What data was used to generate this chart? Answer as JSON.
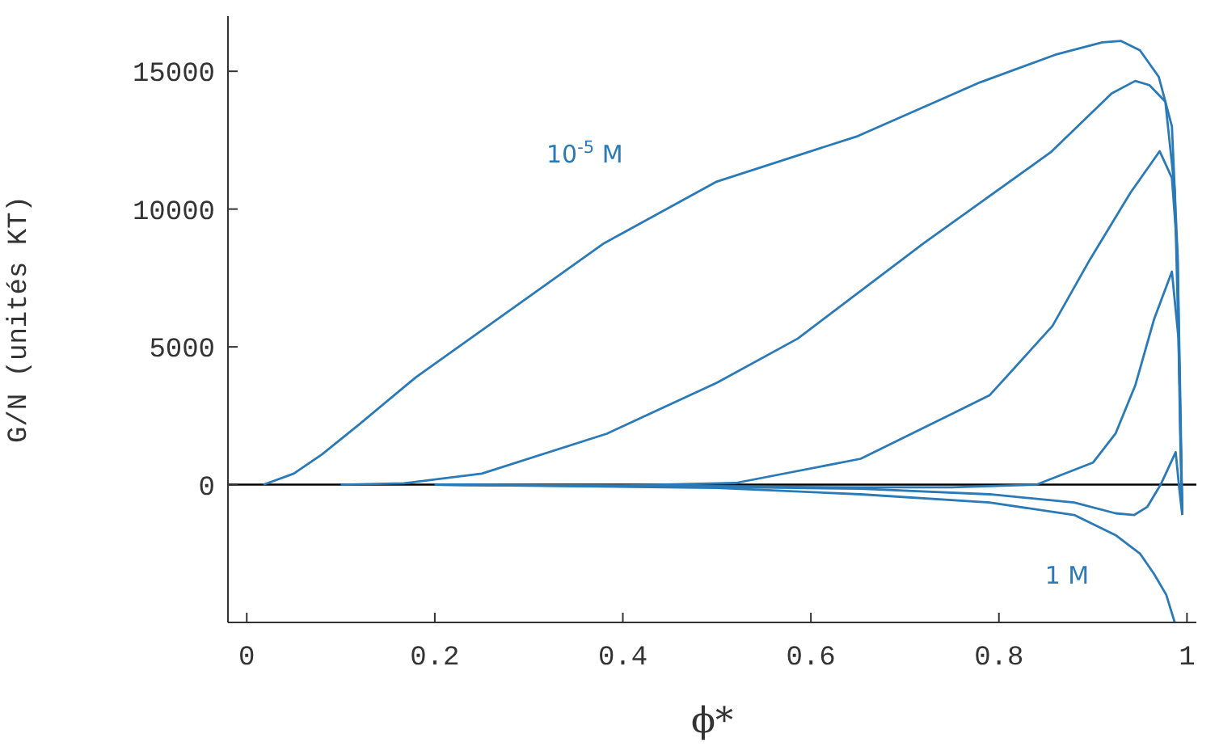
{
  "chart_data": {
    "type": "line",
    "xlabel": "ϕ*",
    "ylabel": "G/N (unités KT)",
    "xlim": [
      -0.02,
      1.01
    ],
    "ylim": [
      -5000,
      17000
    ],
    "xticks": [
      0,
      0.2,
      0.4,
      0.6,
      0.8,
      1
    ],
    "yticks": [
      0,
      5000,
      10000,
      15000
    ],
    "grid": false,
    "legend": false,
    "marker": "none",
    "line_style": "solid",
    "ref_lines": [
      {
        "axis": "y",
        "value": 0,
        "color": "#000000"
      }
    ],
    "series": [
      {
        "name": "10$^{-5}$ M",
        "color": "#2a7ab8",
        "x": [
          0.018,
          0.05,
          0.08,
          0.12,
          0.18,
          0.25,
          0.38,
          0.5,
          0.65,
          0.78,
          0.86,
          0.91,
          0.93,
          0.95,
          0.97,
          0.984,
          0.99,
          0.993,
          0.995
        ],
        "values": [
          0,
          400,
          1100,
          2200,
          3900,
          5600,
          8760,
          11000,
          12650,
          14600,
          15600,
          16050,
          16100,
          15760,
          14800,
          13000,
          8350,
          2000,
          -1100
        ]
      },
      {
        "color": "#2a7ab8",
        "x": [
          0.1,
          0.167,
          0.25,
          0.383,
          0.5,
          0.586,
          0.72,
          0.855,
          0.92,
          0.945,
          0.96,
          0.977,
          0.987,
          0.992,
          0.995
        ],
        "values": [
          0,
          50,
          400,
          1850,
          3700,
          5300,
          8760,
          12060,
          14200,
          14650,
          14500,
          13900,
          10680,
          4000,
          -1100
        ]
      },
      {
        "color": "#2a7ab8",
        "x": [
          0.2,
          0.4,
          0.52,
          0.653,
          0.79,
          0.857,
          0.897,
          0.94,
          0.971,
          0.984,
          0.99,
          0.993,
          0.995
        ],
        "values": [
          0,
          -30,
          60,
          940,
          3240,
          5760,
          8180,
          10600,
          12100,
          11130,
          8350,
          3000,
          -1100
        ]
      },
      {
        "color": "#2a7ab8",
        "x": [
          0.2,
          0.5,
          0.653,
          0.75,
          0.84,
          0.9,
          0.924,
          0.945,
          0.965,
          0.984,
          0.991,
          0.993,
          0.995
        ],
        "values": [
          0,
          -60,
          -100,
          -100,
          0,
          800,
          1850,
          3600,
          6000,
          7730,
          5300,
          1500,
          -1100
        ]
      },
      {
        "color": "#2a7ab8",
        "x": [
          0.2,
          0.5,
          0.653,
          0.79,
          0.88,
          0.924,
          0.944,
          0.958,
          0.972,
          0.988,
          0.992,
          0.995
        ],
        "values": [
          0,
          -80,
          -150,
          -350,
          -650,
          -1040,
          -1100,
          -800,
          0,
          1180,
          -200,
          -1100
        ]
      },
      {
        "name": "1 M",
        "color": "#2a7ab8",
        "x": [
          0.2,
          0.5,
          0.653,
          0.79,
          0.88,
          0.924,
          0.95,
          0.965,
          0.978,
          0.987
        ],
        "values": [
          0,
          -120,
          -350,
          -650,
          -1100,
          -1830,
          -2500,
          -3240,
          -4000,
          -5000
        ]
      }
    ]
  }
}
